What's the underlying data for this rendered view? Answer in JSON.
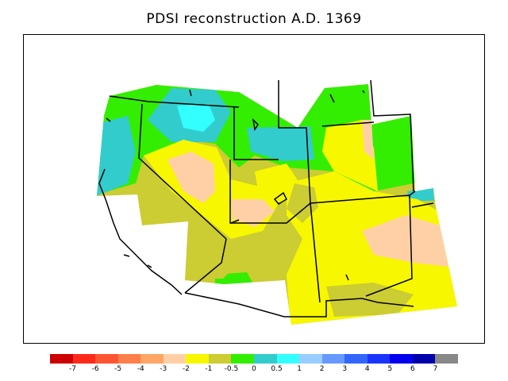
{
  "title": "PDSI reconstruction A.D. 1369",
  "legend": {
    "colors": [
      "#cc0000",
      "#ff2a1a",
      "#ff5533",
      "#ff7f4a",
      "#ffa566",
      "#ffd0a6",
      "#f7f700",
      "#cccc33",
      "#33ee00",
      "#33cccc",
      "#33ffff",
      "#99ccff",
      "#6699ff",
      "#3366ff",
      "#1a33ff",
      "#0000ee",
      "#0000aa",
      "#888888"
    ],
    "labels": [
      "-7",
      "-6",
      "-5",
      "-4",
      "-3",
      "-2",
      "-1",
      "-0.5",
      "0",
      "0.5",
      "1",
      "2",
      "3",
      "4",
      "5",
      "6",
      "7"
    ]
  },
  "zone_colors": {
    "moist": "#33cccc",
    "near_normal_wet": "#33ee00",
    "mild_dry": "#cccc33",
    "dry": "#f7f700",
    "moderate_dry": "#ffd0a6"
  }
}
